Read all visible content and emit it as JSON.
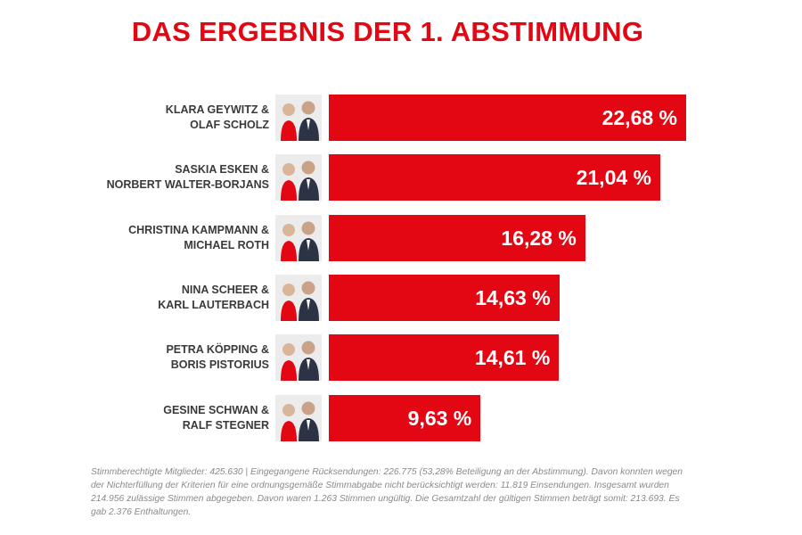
{
  "chart_data": {
    "type": "bar",
    "orientation": "horizontal",
    "title": "DAS ERGEBNIS DER 1. ABSTIMMUNG",
    "xlabel": "",
    "ylabel": "",
    "xlim": [
      0,
      25
    ],
    "grid": false,
    "categories": [
      [
        "KLARA GEYWITZ &",
        "OLAF SCHOLZ"
      ],
      [
        "SASKIA ESKEN &",
        "NORBERT WALTER-BORJANS"
      ],
      [
        "CHRISTINA KAMPMANN &",
        "MICHAEL ROTH"
      ],
      [
        "NINA SCHEER &",
        "KARL LAUTERBACH"
      ],
      [
        "PETRA KÖPPING &",
        "BORIS PISTORIUS"
      ],
      [
        "GESINE SCHWAN &",
        "RALF STEGNER"
      ]
    ],
    "values": [
      22.68,
      21.04,
      16.28,
      14.63,
      14.61,
      9.63
    ],
    "value_labels": [
      "22,68 %",
      "21,04 %",
      "16,28 %",
      "14,63 %",
      "14,61 %",
      "9,63 %"
    ],
    "bar_color": "#e30613",
    "photo_icons": [
      "candidate-duo-photo",
      "candidate-duo-photo",
      "candidate-duo-photo",
      "candidate-duo-photo",
      "candidate-duo-photo",
      "candidate-duo-photo"
    ]
  },
  "footnote": "Stimmberechtigte Mitglieder: 425.630 | Eingegangene Rücksendungen: 226.775 (53,28% Beteiligung an der Abstimmung). Davon konnten wegen der Nichterfüllung der Kriterien für eine ordnungsgemäße Stimmabgabe nicht berücksichtigt werden: 11.819 Einsendungen. Insgesamt wurden 214.956 zulässige Stimmen abgegeben. Davon waren 1.263 Stimmen ungültig. Die Gesamtzahl der gültigen Stimmen beträgt somit: 213.693. Es gab 2.376 Enthaltungen."
}
